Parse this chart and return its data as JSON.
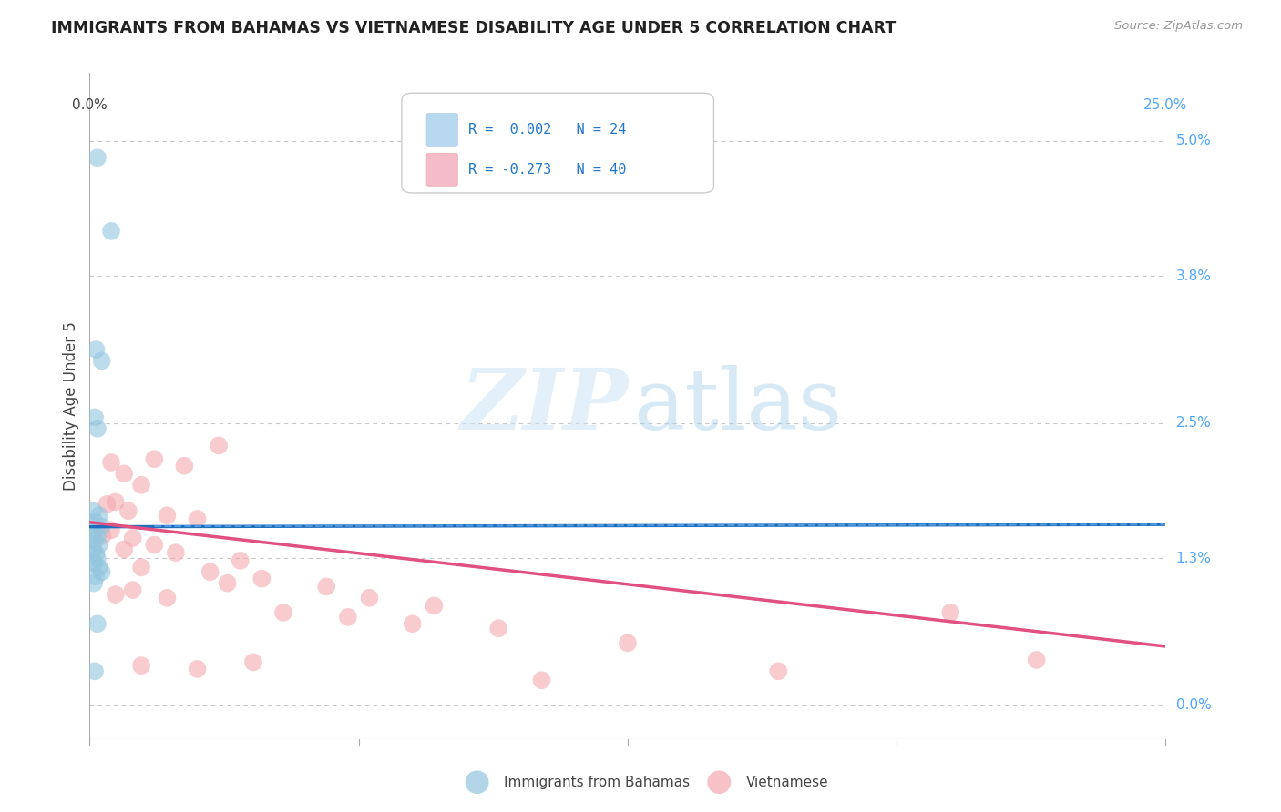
{
  "title": "IMMIGRANTS FROM BAHAMAS VS VIETNAMESE DISABILITY AGE UNDER 5 CORRELATION CHART",
  "source": "Source: ZipAtlas.com",
  "ylabel": "Disability Age Under 5",
  "yticks_labels": [
    "0.0%",
    "1.3%",
    "2.5%",
    "3.8%",
    "5.0%"
  ],
  "ytick_vals": [
    0.0,
    1.3,
    2.5,
    3.8,
    5.0
  ],
  "xlim": [
    0.0,
    25.0
  ],
  "ylim": [
    -0.3,
    5.6
  ],
  "legend_line1": "R =  0.002   N = 24",
  "legend_line2": "R = -0.273   N = 40",
  "legend_label_blue": "Immigrants from Bahamas",
  "legend_label_pink": "Vietnamese",
  "blue_color": "#92c5de",
  "pink_color": "#f4a9b0",
  "blue_scatter": [
    [
      0.18,
      4.85
    ],
    [
      0.5,
      4.2
    ],
    [
      0.15,
      3.15
    ],
    [
      0.28,
      3.05
    ],
    [
      0.12,
      2.55
    ],
    [
      0.18,
      2.45
    ],
    [
      0.08,
      1.72
    ],
    [
      0.22,
      1.68
    ],
    [
      0.12,
      1.62
    ],
    [
      0.28,
      1.58
    ],
    [
      0.1,
      1.54
    ],
    [
      0.18,
      1.5
    ],
    [
      0.12,
      1.46
    ],
    [
      0.22,
      1.42
    ],
    [
      0.08,
      1.38
    ],
    [
      0.15,
      1.34
    ],
    [
      0.18,
      1.3
    ],
    [
      0.1,
      1.26
    ],
    [
      0.22,
      1.22
    ],
    [
      0.28,
      1.18
    ],
    [
      0.15,
      1.14
    ],
    [
      0.1,
      1.08
    ],
    [
      0.18,
      0.72
    ],
    [
      0.12,
      0.3
    ]
  ],
  "pink_scatter": [
    [
      0.5,
      2.15
    ],
    [
      0.8,
      2.05
    ],
    [
      1.5,
      2.18
    ],
    [
      2.2,
      2.12
    ],
    [
      3.0,
      2.3
    ],
    [
      1.2,
      1.95
    ],
    [
      0.6,
      1.8
    ],
    [
      0.4,
      1.78
    ],
    [
      0.9,
      1.72
    ],
    [
      1.8,
      1.68
    ],
    [
      2.5,
      1.65
    ],
    [
      0.5,
      1.55
    ],
    [
      0.3,
      1.5
    ],
    [
      1.0,
      1.48
    ],
    [
      1.5,
      1.42
    ],
    [
      0.8,
      1.38
    ],
    [
      2.0,
      1.35
    ],
    [
      3.5,
      1.28
    ],
    [
      1.2,
      1.22
    ],
    [
      2.8,
      1.18
    ],
    [
      4.0,
      1.12
    ],
    [
      3.2,
      1.08
    ],
    [
      1.0,
      1.02
    ],
    [
      0.6,
      0.98
    ],
    [
      1.8,
      0.95
    ],
    [
      5.5,
      1.05
    ],
    [
      6.5,
      0.95
    ],
    [
      8.0,
      0.88
    ],
    [
      4.5,
      0.82
    ],
    [
      6.0,
      0.78
    ],
    [
      7.5,
      0.72
    ],
    [
      9.5,
      0.68
    ],
    [
      1.2,
      0.35
    ],
    [
      3.8,
      0.38
    ],
    [
      2.5,
      0.32
    ],
    [
      12.5,
      0.55
    ],
    [
      20.0,
      0.82
    ],
    [
      22.0,
      0.4
    ],
    [
      16.0,
      0.3
    ],
    [
      10.5,
      0.22
    ]
  ],
  "blue_trend_x": [
    0.0,
    25.0
  ],
  "blue_trend_y": [
    1.58,
    1.6
  ],
  "pink_trend_x": [
    0.0,
    25.0
  ],
  "pink_trend_y": [
    1.62,
    0.52
  ],
  "watermark_zip": "ZIP",
  "watermark_atlas": "atlas",
  "background_color": "#ffffff",
  "grid_color": "#c8c8c8",
  "tick_color": "#4da6ff",
  "text_color": "#444444"
}
